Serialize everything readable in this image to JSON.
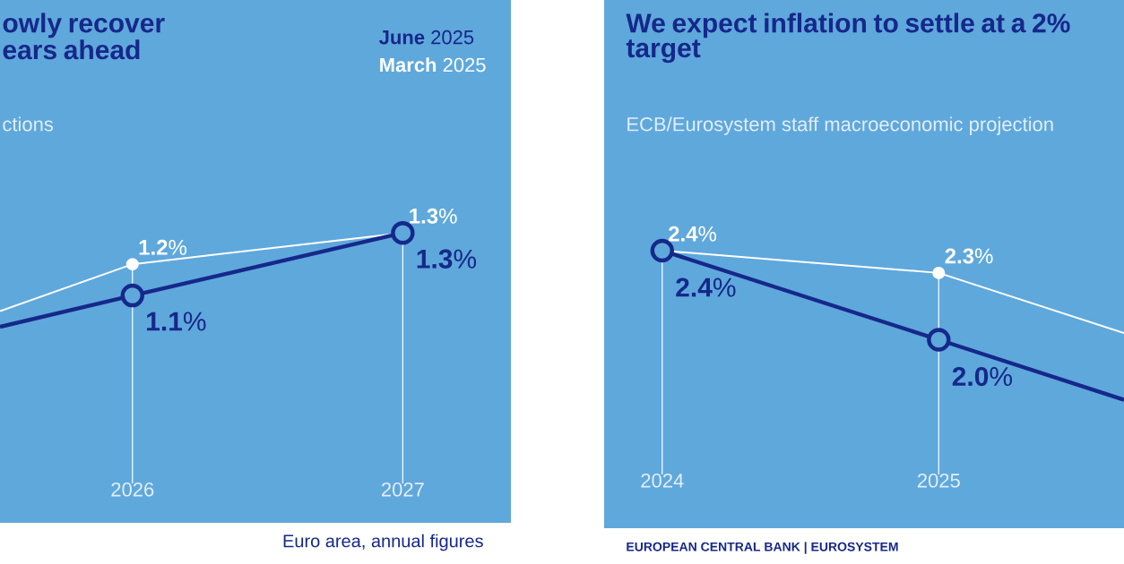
{
  "chart_data": [
    {
      "type": "line",
      "title": "owly recover ears ahead",
      "subtitle": "ctions",
      "x": [
        2025.51,
        2026,
        2027
      ],
      "xlim": [
        2025.51,
        2027.4
      ],
      "xticks": [
        2026,
        2027
      ],
      "tick_labels": "x",
      "grid": "x",
      "marker": "circle",
      "legend": "top right",
      "series": [
        {
          "name": "**June** 2025",
          "color": "#16288a",
          "values": [
            1.0,
            1.1,
            1.3
          ],
          "value_labels": [
            null,
            "**1.1**%",
            "**1.3**%"
          ]
        },
        {
          "name": "**March** 2025",
          "color": "#ffffff",
          "values": [
            1.05,
            1.2,
            1.3
          ],
          "value_labels": [
            null,
            "**1.2**%",
            "**1.3**%"
          ]
        }
      ],
      "annotations": [
        "Euro area, annual figures"
      ]
    },
    {
      "type": "line",
      "title": "We expect inflation to settle at a 2% target",
      "subtitle": "ECB/Eurosystem staff macroeconomic projection",
      "x": [
        2024,
        2025,
        2025.67
      ],
      "xlim": [
        2023.79,
        2025.67
      ],
      "xticks": [
        2024,
        2025
      ],
      "tick_labels": "x",
      "grid": "x",
      "marker": "circle",
      "series": [
        {
          "color": "#16288a",
          "values": [
            2.4,
            2.0,
            1.73
          ],
          "value_labels": [
            "**2.4**%",
            "**2.0**%",
            null
          ]
        },
        {
          "color": "#ffffff",
          "values": [
            2.4,
            2.3,
            2.03
          ],
          "value_labels": [
            "**2.4**%",
            "**2.3**%",
            null
          ]
        }
      ],
      "annotations": [
        "EUROPEAN CENTRAL BANK | EUROSYSTEM"
      ]
    }
  ]
}
